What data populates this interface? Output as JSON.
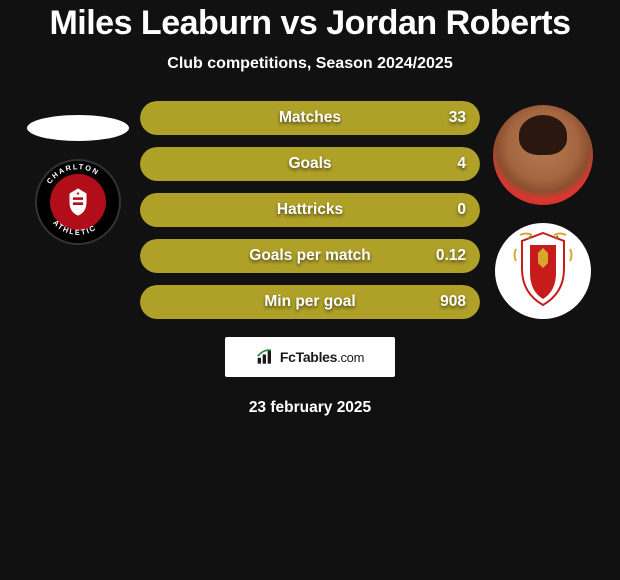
{
  "title": "Miles Leaburn vs Jordan Roberts",
  "subtitle": "Club competitions, Season 2024/2025",
  "date": "23 february 2025",
  "brand": {
    "name": "FcTables",
    "domain": ".com"
  },
  "colors": {
    "background": "#111111",
    "bar_track": "#afa028",
    "bar_left_fill": "#afa028",
    "text": "#ffffff"
  },
  "left": {
    "player": "Miles Leaburn",
    "photo_placeholder": true,
    "club": "Charlton Athletic",
    "club_colors": {
      "outer": "#000000",
      "ring_text": "#ffffff",
      "inner": "#b10e1a"
    }
  },
  "right": {
    "player": "Jordan Roberts",
    "club": "Stevenage",
    "club_colors": {
      "bg": "#ffffff",
      "red": "#c81b1b",
      "gold": "#d6a92c"
    }
  },
  "stats": [
    {
      "label": "Matches",
      "leftPct": 0,
      "rightValue": "33"
    },
    {
      "label": "Goals",
      "leftPct": 0,
      "rightValue": "4"
    },
    {
      "label": "Hattricks",
      "leftPct": 50,
      "rightValue": "0"
    },
    {
      "label": "Goals per match",
      "leftPct": 0,
      "rightValue": "0.12"
    },
    {
      "label": "Min per goal",
      "leftPct": 0,
      "rightValue": "908"
    }
  ],
  "bar_style": {
    "height": 34,
    "radius": 17,
    "gap": 12,
    "fontsize": 15.5,
    "shadow": "0 2px 3px rgba(0,0,0,0.55)"
  }
}
